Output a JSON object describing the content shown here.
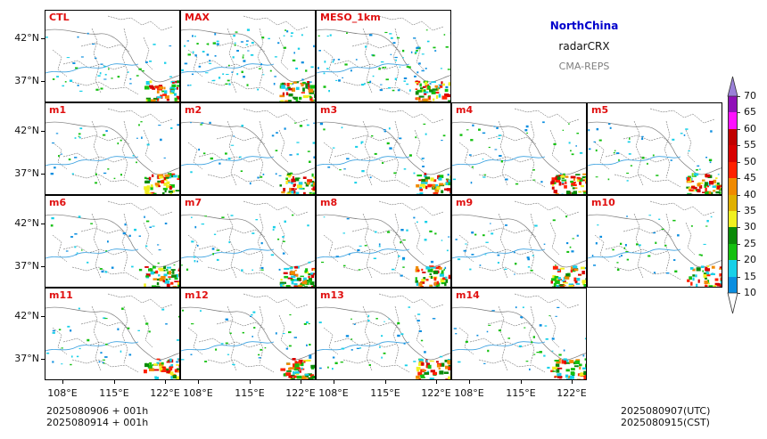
{
  "header": {
    "region": "NorthChina",
    "variable": "radarCRX",
    "system": "CMA-REPS"
  },
  "panels": [
    {
      "label": "CTL",
      "row": 0,
      "col": 0
    },
    {
      "label": "MAX",
      "row": 0,
      "col": 1
    },
    {
      "label": "MESO_1km",
      "row": 0,
      "col": 2
    },
    {
      "label": "m1",
      "row": 1,
      "col": 0
    },
    {
      "label": "m2",
      "row": 1,
      "col": 1
    },
    {
      "label": "m3",
      "row": 1,
      "col": 2
    },
    {
      "label": "m4",
      "row": 1,
      "col": 3
    },
    {
      "label": "m5",
      "row": 1,
      "col": 4
    },
    {
      "label": "m6",
      "row": 2,
      "col": 0
    },
    {
      "label": "m7",
      "row": 2,
      "col": 1
    },
    {
      "label": "m8",
      "row": 2,
      "col": 2
    },
    {
      "label": "m9",
      "row": 2,
      "col": 3
    },
    {
      "label": "m10",
      "row": 2,
      "col": 4
    },
    {
      "label": "m11",
      "row": 3,
      "col": 0
    },
    {
      "label": "m12",
      "row": 3,
      "col": 1
    },
    {
      "label": "m13",
      "row": 3,
      "col": 2
    },
    {
      "label": "m14",
      "row": 3,
      "col": 3
    }
  ],
  "axes": {
    "lat_labels": [
      "42°N",
      "37°N"
    ],
    "lon_labels": [
      "108°E",
      "115°E",
      "122°E"
    ]
  },
  "colorbar": {
    "levels": [
      "10",
      "15",
      "20",
      "25",
      "30",
      "35",
      "40",
      "45",
      "50",
      "55",
      "60",
      "65",
      "70"
    ],
    "colors": [
      "#0a8ee0",
      "#18d0e8",
      "#14c010",
      "#0a8a08",
      "#f0f020",
      "#e0b000",
      "#f08a00",
      "#ff2000",
      "#d80000",
      "#c00000",
      "#ff10ff",
      "#9010b8"
    ],
    "top_extend_color": "#9a80d8",
    "bottom_extend_color": "#ffffff"
  },
  "footer": {
    "init_utc": "2025080906  +  001h",
    "init_cst": "2025080914  +  001h",
    "valid_utc": "2025080907(UTC)",
    "valid_cst": "2025080915(CST)"
  }
}
